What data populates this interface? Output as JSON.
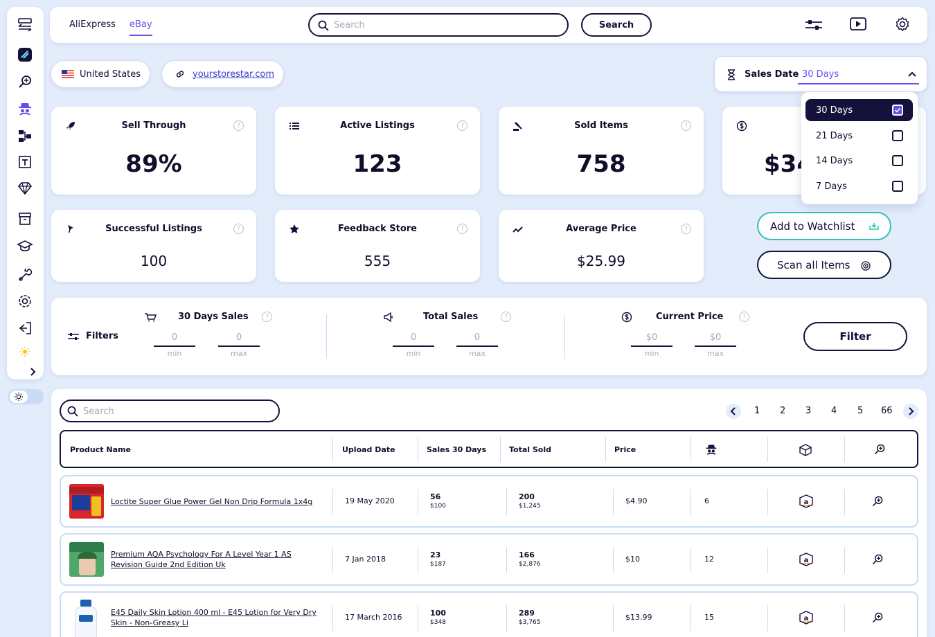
{
  "tabs": [
    {
      "label": "AliExpress"
    },
    {
      "label": "eBay"
    }
  ],
  "active_tab": "eBay",
  "top_search": {
    "placeholder": "Search",
    "button": "Search"
  },
  "country": {
    "label": "United States"
  },
  "store_link": {
    "label": "yourstorestar.com"
  },
  "sales_date": {
    "label": "Sales Date",
    "value": "30 Days"
  },
  "dropdown_options": [
    {
      "label": "30 Days",
      "checked": true
    },
    {
      "label": "21 Days",
      "checked": false
    },
    {
      "label": "14 Days",
      "checked": false
    },
    {
      "label": "7 Days",
      "checked": false
    }
  ],
  "stats": [
    {
      "label": "Sell Through",
      "value": "89%"
    },
    {
      "label": "Active Listings",
      "value": "123"
    },
    {
      "label": "Sold Items",
      "value": "758"
    },
    {
      "label": "",
      "value": "$34"
    },
    {
      "label": "Successful Listings",
      "value": "100"
    },
    {
      "label": "Feedback Store",
      "value": "555"
    },
    {
      "label": "Average Price",
      "value": "$25.99"
    }
  ],
  "actions": {
    "watchlist": "Add to Watchlist",
    "scan": "Scan all Items"
  },
  "filters": {
    "title": "Filters",
    "groups": [
      {
        "label": "30 Days Sales",
        "min": "0",
        "max": "0"
      },
      {
        "label": "Total Sales",
        "min": "0",
        "max": "0"
      },
      {
        "label": "Current Price",
        "min": "$0",
        "max": "$0"
      }
    ],
    "min_caption": "min",
    "max_caption": "max",
    "button": "Filter"
  },
  "table_search": {
    "placeholder": "Search"
  },
  "pagination": {
    "pages": [
      "1",
      "2",
      "3",
      "4",
      "5",
      "66"
    ]
  },
  "table": {
    "headers": [
      "Product Name",
      "Upload Date",
      "Sales 30 Days",
      "Total Sold",
      "Price"
    ],
    "rows": [
      {
        "name": "Loctite Super Glue Power Gel Non Drip Formula 1x4g",
        "date": "19 May 2020",
        "sales": "56",
        "sales_sub": "$100",
        "total": "200",
        "total_sub": "$1,245",
        "price": "$4.90",
        "competitors": "6"
      },
      {
        "name": "Premium AQA Psychology For A Level Year 1 AS Revision Guide 2nd Edition Uk",
        "date": "7 Jan 2018",
        "sales": "23",
        "sales_sub": "$187",
        "total": "166",
        "total_sub": "$2,876",
        "price": "$10",
        "competitors": "12"
      },
      {
        "name": "E45 Daily Skin Lotion 400 ml - E45 Lotion for Very Dry Skin - Non-Greasy Li",
        "date": "17 March 2016",
        "sales": "100",
        "sales_sub": "$348",
        "total": "289",
        "total_sub": "$3,765",
        "price": "$13.99",
        "competitors": "15"
      }
    ]
  },
  "colors": {
    "accent": "#6a4df0",
    "dark": "#14113a",
    "teal": "#2ec4b6",
    "background": "#e3ecfa"
  }
}
